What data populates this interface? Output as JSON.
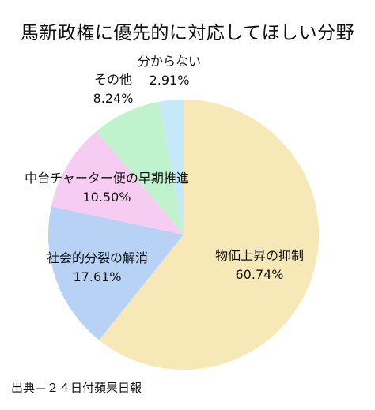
{
  "chart_data": {
    "type": "pie",
    "title": "馬新政権に優先的に対応してほしい分野",
    "categories": [
      "物価上昇の抑制",
      "社会的分裂の解消",
      "中台チャーター便の早期推進",
      "その他",
      "分からない"
    ],
    "values": [
      60.74,
      17.61,
      10.5,
      8.24,
      2.91
    ],
    "value_labels": [
      "60.74%",
      "17.61%",
      "10.50%",
      "8.24%",
      "2.91%"
    ],
    "colors": [
      "#F7E8B8",
      "#B7D2F5",
      "#F7CCF2",
      "#BFF2CD",
      "#C6E9FA"
    ],
    "start_angle": "12 o'clock",
    "direction": "clockwise",
    "legend": "none",
    "source": "出典＝２４日付蘋果日報"
  }
}
